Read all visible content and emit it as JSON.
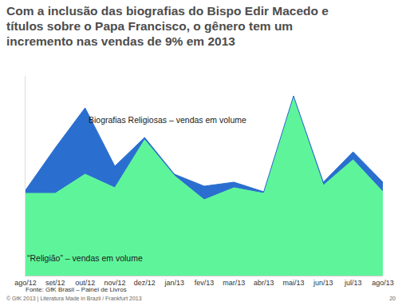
{
  "chart_data": {
    "type": "area",
    "title": "Com a inclusão das biografias do Bispo Edir Macedo e títulos sobre o Papa Francisco, o gênero tem um incremento nas vendas de 9% em 2013",
    "categories": [
      "ago/12",
      "set/12",
      "out/12",
      "nov/12",
      "dez/12",
      "jan/13",
      "fev/13",
      "mar/13",
      "abr/13",
      "mai/13",
      "jun/13",
      "jul/13",
      "ago/13"
    ],
    "series": [
      {
        "name": "“Religião” – vendas em volume",
        "color": "#5ef59a",
        "values": [
          103,
          103,
          127,
          110,
          170,
          125,
          95,
          110,
          103,
          223,
          113,
          145,
          105
        ]
      },
      {
        "name": "Biografias Religiosas – vendas em volume",
        "color": "#2a6fcf",
        "values": [
          4,
          57,
          83,
          27,
          3,
          2,
          17,
          7,
          2,
          2,
          4,
          10,
          12
        ]
      }
    ],
    "stacked": true,
    "ylim": [
      0,
      250
    ],
    "tick_labels": "x",
    "grid": false,
    "source": "Fonte: GfK Brasil – Painel de Livros",
    "footer": "© GfK 2013 | Literatura Made in Brazil / Frankfurt 2013",
    "page": "20"
  }
}
